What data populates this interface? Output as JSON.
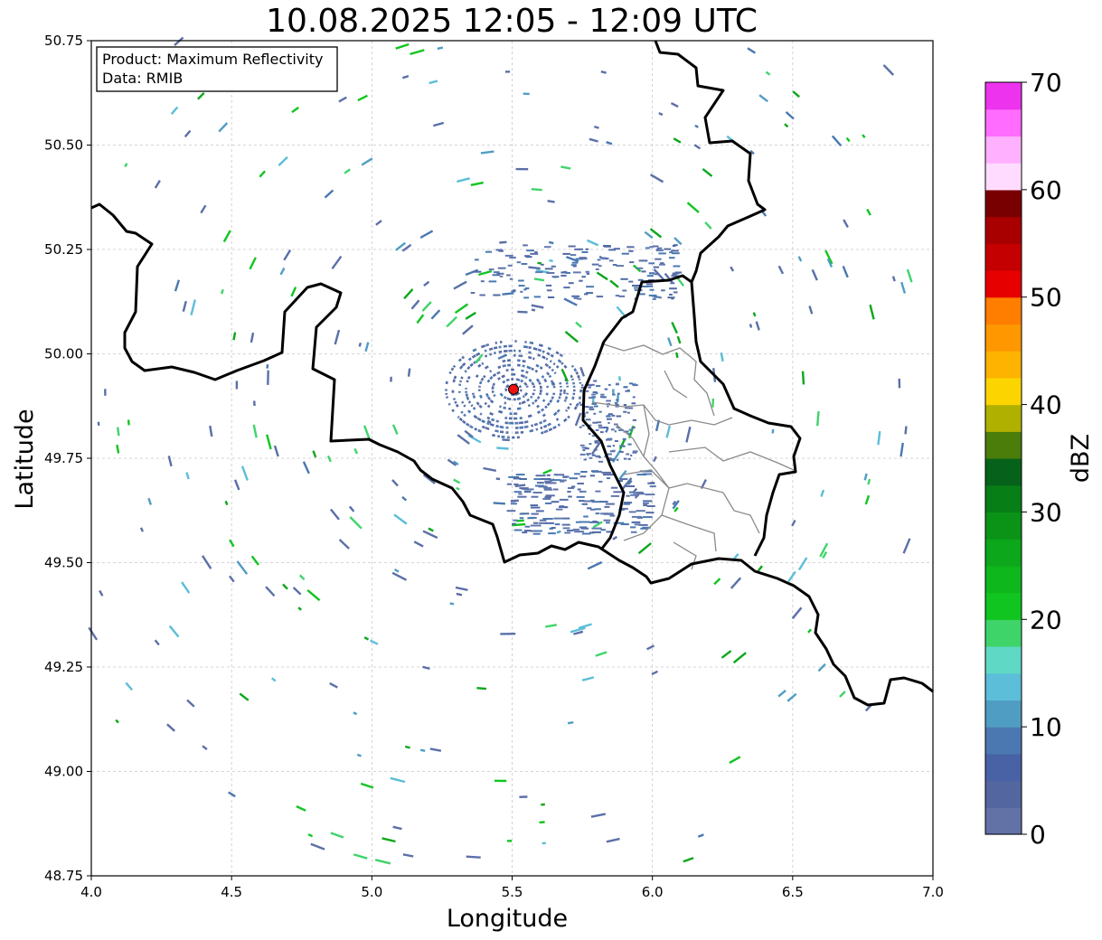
{
  "title": "10.08.2025 12:05 - 12:09 UTC",
  "info_box": {
    "product_line": "Product: Maximum Reflectivity",
    "data_line": "Data: RMIB"
  },
  "axes": {
    "xlabel": "Longitude",
    "ylabel": "Latitude",
    "xlim": [
      4.0,
      7.0
    ],
    "ylim": [
      48.75,
      50.75
    ],
    "xticks": [
      "4.0",
      "4.5",
      "5.0",
      "5.5",
      "6.0",
      "6.5",
      "7.0"
    ],
    "yticks": [
      "48.75",
      "49.00",
      "49.25",
      "49.50",
      "49.75",
      "50.00",
      "50.25",
      "50.50",
      "50.75"
    ],
    "grid": true
  },
  "radar_site": {
    "lon": 5.505,
    "lat": 49.915,
    "color": "#ee1111"
  },
  "colorbar": {
    "label": "dBZ",
    "ticks": [
      "0",
      "10",
      "20",
      "30",
      "40",
      "50",
      "60",
      "70"
    ],
    "min": 0,
    "max": 70,
    "step": 2.5,
    "colors": [
      "#6272a6",
      "#53669f",
      "#4862a5",
      "#4b78b0",
      "#509dc3",
      "#5cbed8",
      "#60d8c6",
      "#3fd46a",
      "#11c520",
      "#0eb71c",
      "#0ca71a",
      "#0b9318",
      "#087e16",
      "#06621a",
      "#4a7d0a",
      "#afb000",
      "#fcd500",
      "#fdb300",
      "#fe9700",
      "#ff7e00",
      "#e60000",
      "#c40000",
      "#a80000",
      "#780000",
      "#ffdcff",
      "#ffb0ff",
      "#ff6cff",
      "#ee33ee"
    ]
  }
}
